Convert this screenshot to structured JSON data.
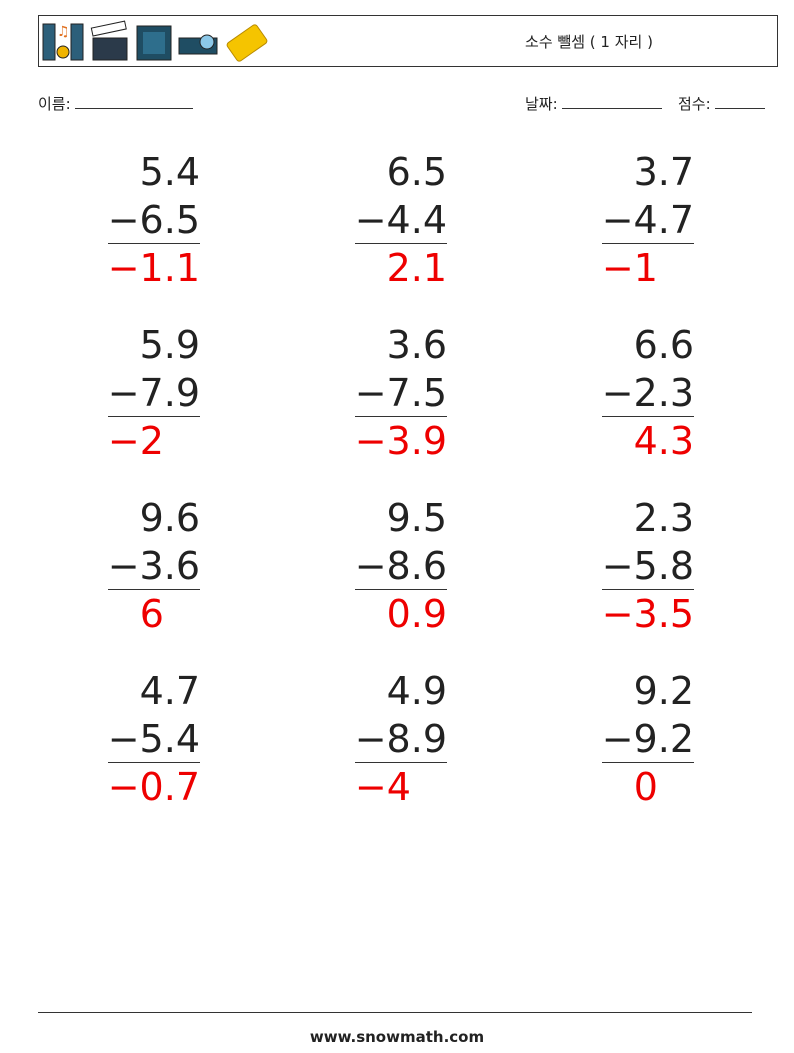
{
  "header": {
    "title": "소수 뺄셈 ( 1 자리 )"
  },
  "fields": {
    "name": "이름:",
    "date": "날짜:",
    "score": "점수:"
  },
  "problems": [
    {
      "top": "5.4",
      "bottom": "−6.5",
      "answer": "−1.1"
    },
    {
      "top": "6.5",
      "bottom": "−4.4",
      "answer": "2.1"
    },
    {
      "top": "3.7",
      "bottom": "−4.7",
      "answer": "−1"
    },
    {
      "top": "5.9",
      "bottom": "−7.9",
      "answer": "−2"
    },
    {
      "top": "3.6",
      "bottom": "−7.5",
      "answer": "−3.9"
    },
    {
      "top": "6.6",
      "bottom": "−2.3",
      "answer": "4.3"
    },
    {
      "top": "9.6",
      "bottom": "−3.6",
      "answer": "6"
    },
    {
      "top": "9.5",
      "bottom": "−8.6",
      "answer": "0.9"
    },
    {
      "top": "2.3",
      "bottom": "−5.8",
      "answer": "−3.5"
    },
    {
      "top": "4.7",
      "bottom": "−5.4",
      "answer": "−0.7"
    },
    {
      "top": "4.9",
      "bottom": "−8.9",
      "answer": "−4"
    },
    {
      "top": "9.2",
      "bottom": "−9.2",
      "answer": "0"
    }
  ],
  "footer": {
    "site": "www.snowmath.com"
  }
}
